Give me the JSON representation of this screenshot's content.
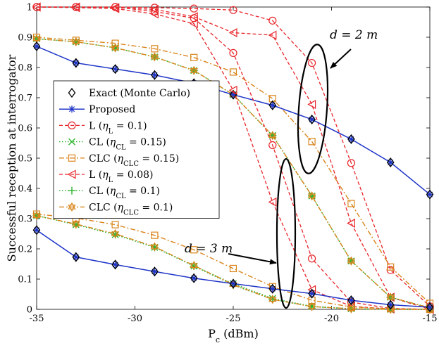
{
  "chart_data": {
    "type": "line",
    "xlabel": "P_c (dBm)",
    "ylabel": "Successful reception at interrogator",
    "xlim": [
      -35,
      -15
    ],
    "ylim": [
      0,
      1
    ],
    "xticks": [
      -35,
      -30,
      -25,
      -20,
      -15
    ],
    "yticks": [
      0,
      0.1,
      0.2,
      0.3,
      0.4,
      0.5,
      0.6,
      0.7,
      0.8,
      0.9,
      1
    ],
    "grid": false,
    "legend_position": "left-middle",
    "x": [
      -35,
      -33,
      -31,
      -29,
      -27,
      -25,
      -23,
      -21,
      -19,
      -17,
      -15
    ],
    "groups": [
      {
        "annotation": "d = 2 m",
        "series": [
          {
            "name": "Exact (Monte Carlo)",
            "style": "diamond-markers",
            "color": "#000000",
            "values": [
              0.87,
              0.815,
              0.795,
              0.775,
              0.748,
              0.71,
              0.675,
              0.628,
              0.563,
              0.486,
              0.38
            ]
          },
          {
            "name": "Proposed",
            "style": "solid-star",
            "color": "#1f35c8",
            "values": [
              0.87,
              0.815,
              0.795,
              0.775,
              0.748,
              0.71,
              0.675,
              0.628,
              0.563,
              0.486,
              0.38
            ]
          },
          {
            "name": "L (η_L = 0.1)",
            "style": "dashed-circle",
            "color": "#e8262b",
            "values": [
              1.0,
              1.0,
              1.0,
              0.998,
              0.995,
              0.99,
              0.955,
              0.815,
              0.484,
              0.13,
              0.01
            ]
          },
          {
            "name": "CL (η_CL = 0.15)",
            "style": "dotted-x",
            "color": "#2db52d",
            "values": [
              0.895,
              0.885,
              0.865,
              0.835,
              0.79,
              0.71,
              0.575,
              0.375,
              0.16,
              0.04,
              0.005
            ]
          },
          {
            "name": "CLC (η_CLC = 0.15)",
            "style": "dashdot-square",
            "color": "#d9851c",
            "values": [
              0.9,
              0.89,
              0.88,
              0.862,
              0.833,
              0.785,
              0.697,
              0.555,
              0.35,
              0.14,
              0.02
            ]
          },
          {
            "name": "L (η_L = 0.08)",
            "style": "dashed-triangle",
            "color": "#e8262b",
            "values": [
              1.0,
              1.0,
              0.998,
              0.992,
              0.968,
              0.915,
              0.907,
              0.678,
              0.285,
              0.04,
              0.0
            ]
          },
          {
            "name": "CL (η_CL = 0.1)",
            "style": "dotted-plus",
            "color": "#2db52d",
            "values": [
              0.895,
              0.885,
              0.865,
              0.835,
              0.79,
              0.71,
              0.575,
              0.375,
              0.16,
              0.04,
              0.005
            ]
          },
          {
            "name": "CLC (η_CLC = 0.1)",
            "style": "dashdot-hexagram",
            "color": "#d9851c",
            "values": [
              0.895,
              0.885,
              0.865,
              0.835,
              0.79,
              0.71,
              0.575,
              0.375,
              0.16,
              0.04,
              0.005
            ]
          }
        ]
      },
      {
        "annotation": "d = 3 m",
        "series": [
          {
            "name": "Exact (Monte Carlo)",
            "style": "diamond-markers",
            "color": "#000000",
            "values": [
              0.262,
              0.173,
              0.148,
              0.125,
              0.103,
              0.085,
              0.068,
              0.052,
              0.03,
              0.015,
              0.007
            ]
          },
          {
            "name": "Proposed",
            "style": "solid-star",
            "color": "#1f35c8",
            "values": [
              0.262,
              0.173,
              0.148,
              0.125,
              0.103,
              0.085,
              0.068,
              0.052,
              0.03,
              0.015,
              0.007
            ]
          },
          {
            "name": "L (η_L = 0.1)",
            "style": "dashed-circle",
            "color": "#e8262b",
            "values": [
              1.0,
              1.0,
              1.0,
              0.985,
              0.963,
              0.848,
              0.543,
              0.168,
              0.024,
              0.003,
              0.0
            ]
          },
          {
            "name": "CL (η_CL = 0.15)",
            "style": "dotted-x",
            "color": "#2db52d",
            "values": [
              0.31,
              0.28,
              0.247,
              0.205,
              0.143,
              0.085,
              0.036,
              0.01,
              0.002,
              0.0,
              0.0
            ]
          },
          {
            "name": "CLC (η_CLC = 0.15)",
            "style": "dashdot-square",
            "color": "#d9851c",
            "values": [
              0.315,
              0.302,
              0.28,
              0.245,
              0.197,
              0.135,
              0.075,
              0.03,
              0.008,
              0.002,
              0.0
            ]
          },
          {
            "name": "L (η_L = 0.08)",
            "style": "dashed-triangle",
            "color": "#e8262b",
            "values": [
              1.0,
              0.998,
              0.995,
              0.977,
              0.945,
              0.725,
              0.355,
              0.065,
              0.01,
              0.001,
              0.0
            ]
          },
          {
            "name": "CL (η_CL = 0.1)",
            "style": "dotted-plus",
            "color": "#2db52d",
            "values": [
              0.31,
              0.28,
              0.247,
              0.205,
              0.143,
              0.08,
              0.033,
              0.009,
              0.002,
              0.0,
              0.0
            ]
          },
          {
            "name": "CLC (η_CLC = 0.1)",
            "style": "dashdot-hexagram",
            "color": "#d9851c",
            "values": [
              0.31,
              0.282,
              0.25,
              0.207,
              0.145,
              0.082,
              0.033,
              0.009,
              0.002,
              0.0,
              0.0
            ]
          }
        ]
      }
    ]
  },
  "legend": {
    "entries": [
      {
        "base": "Exact (Monte Carlo)",
        "sym": "",
        "sub": "",
        "val": ""
      },
      {
        "base": "Proposed",
        "sym": "",
        "sub": "",
        "val": ""
      },
      {
        "base": "L (",
        "sym": "η",
        "sub": "L",
        "val": " = 0.1)"
      },
      {
        "base": "CL (",
        "sym": "η",
        "sub": "CL",
        "val": " = 0.15)"
      },
      {
        "base": "CLC (",
        "sym": "η",
        "sub": "CLC",
        "val": " = 0.15)"
      },
      {
        "base": "L (",
        "sym": "η",
        "sub": "L",
        "val": " = 0.08)"
      },
      {
        "base": "CL (",
        "sym": "η",
        "sub": "CL",
        "val": " = 0.1)"
      },
      {
        "base": "CLC (",
        "sym": "η",
        "sub": "CLC",
        "val": " = 0.1)"
      }
    ]
  },
  "axis_labels": {
    "x_main": "P",
    "x_sub": "c",
    "x_unit": " (dBm)",
    "y": "Successful reception at interrogator"
  },
  "annotations": {
    "d2": "d = 2 m",
    "d3": "d = 3 m"
  }
}
